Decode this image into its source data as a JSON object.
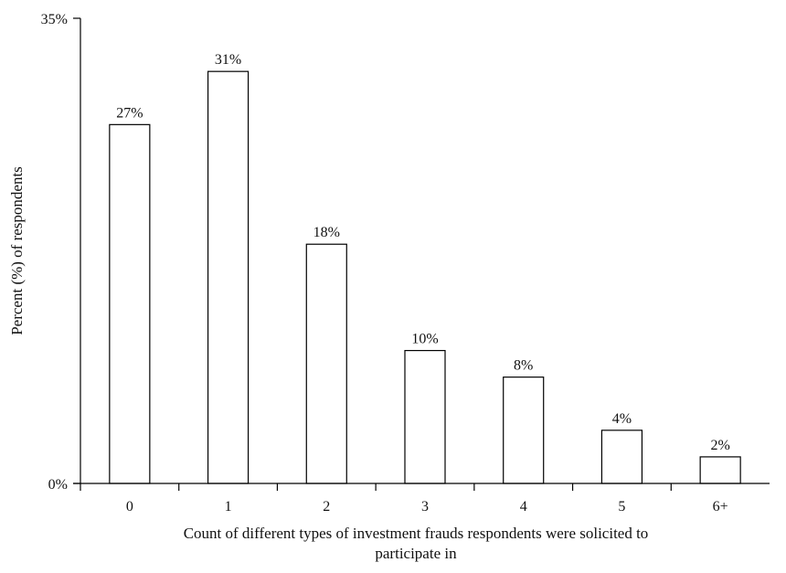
{
  "chart_data": {
    "type": "bar",
    "title": "",
    "xlabel": "Count of different types of investment frauds respondents were solicited to participate in",
    "xlabel_lines": [
      "Count of different types of investment frauds respondents were solicited to",
      "participate in"
    ],
    "ylabel": "Percent (%) of respondents",
    "categories": [
      "0",
      "1",
      "2",
      "3",
      "4",
      "5",
      "6+"
    ],
    "values": [
      27,
      31,
      18,
      10,
      8,
      4,
      2
    ],
    "data_labels": [
      "27%",
      "31%",
      "18%",
      "10%",
      "8%",
      "4%",
      "2%"
    ],
    "ylim": [
      0,
      35
    ],
    "y_tick_labels": [
      "0%",
      "35%"
    ],
    "grid": false,
    "legend": "none",
    "bar_fill": "#ffffff",
    "bar_stroke": "#000000"
  }
}
